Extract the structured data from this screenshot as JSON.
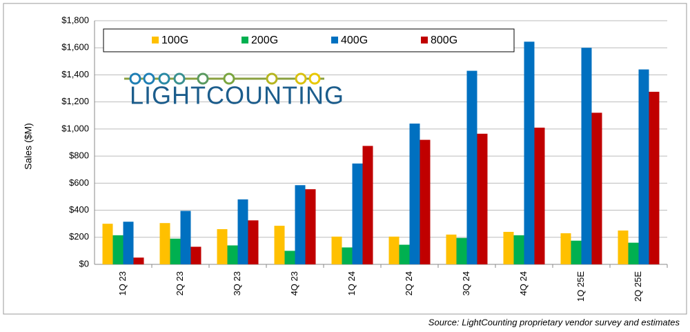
{
  "chart_data": {
    "type": "bar",
    "y_label": "Sales ($M)",
    "logo": "LIGHTCOUNTING",
    "source": "Source: LightCounting proprietary vendor survey and estimates",
    "categories": [
      "1Q 23",
      "2Q 23",
      "3Q 23",
      "4Q 23",
      "1Q 24",
      "2Q 24",
      "3Q 24",
      "4Q 24",
      "1Q 25E",
      "2Q 25E"
    ],
    "series": [
      {
        "name": "100G",
        "color": "#ffc000",
        "values": [
          300,
          305,
          260,
          285,
          205,
          205,
          220,
          240,
          230,
          250
        ]
      },
      {
        "name": "200G",
        "color": "#00b050",
        "values": [
          215,
          190,
          140,
          100,
          125,
          145,
          195,
          215,
          175,
          160
        ]
      },
      {
        "name": "400G",
        "color": "#0070c0",
        "values": [
          315,
          395,
          480,
          585,
          745,
          1040,
          1430,
          1645,
          1600,
          1440
        ]
      },
      {
        "name": "800G",
        "color": "#c00000",
        "values": [
          50,
          130,
          325,
          555,
          875,
          920,
          965,
          1010,
          1120,
          1275
        ]
      }
    ],
    "ylim": [
      0,
      1800
    ],
    "yticks": [
      {
        "value": 0,
        "label": "$0"
      },
      {
        "value": 200,
        "label": "$200"
      },
      {
        "value": 400,
        "label": "$400"
      },
      {
        "value": 600,
        "label": "$600"
      },
      {
        "value": 800,
        "label": "$800"
      },
      {
        "value": 1000,
        "label": "$1,000"
      },
      {
        "value": 1200,
        "label": "$1,200"
      },
      {
        "value": 1400,
        "label": "$1,400"
      },
      {
        "value": 1600,
        "label": "$1,600"
      },
      {
        "value": 1800,
        "label": "$1,800"
      }
    ],
    "grid": true
  }
}
